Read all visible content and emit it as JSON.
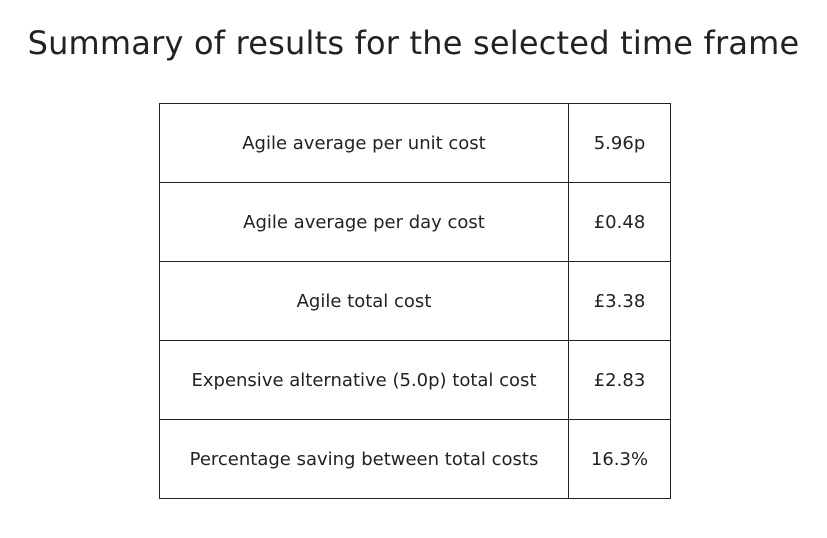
{
  "title": "Summary of results for the selected time frame",
  "rows": [
    {
      "label": "Agile average per unit cost",
      "value": "5.96p"
    },
    {
      "label": "Agile average per day cost",
      "value": "£0.48"
    },
    {
      "label": "Agile total cost",
      "value": "£3.38"
    },
    {
      "label": "Expensive alternative (5.0p) total cost",
      "value": "£2.83"
    },
    {
      "label": "Percentage saving between total costs",
      "value": "16.3%"
    }
  ]
}
